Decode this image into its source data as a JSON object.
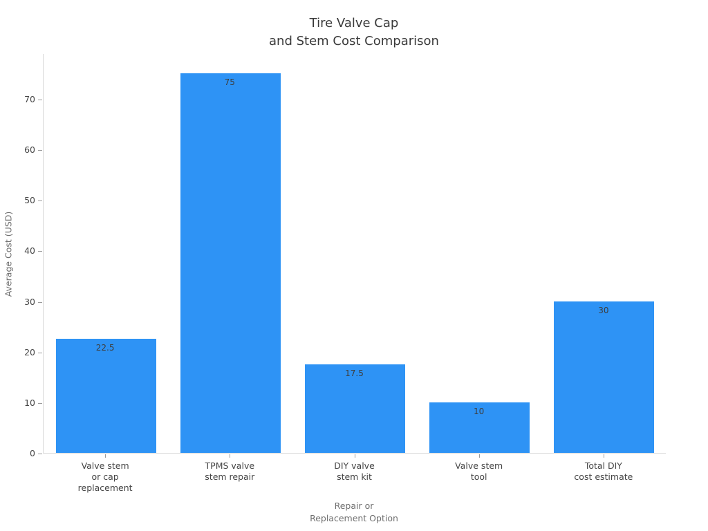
{
  "chart_data": {
    "type": "bar",
    "title": "Tire Valve Cap\nand Stem Cost Comparison",
    "categories": [
      "Valve stem\nor cap\nreplacement",
      "TPMS valve\nstem repair",
      "DIY valve\nstem kit",
      "Valve stem\ntool",
      "Total DIY\ncost estimate"
    ],
    "values": [
      22.5,
      75,
      17.5,
      10,
      30
    ],
    "value_labels": [
      "22.5",
      "75",
      "17.5",
      "10",
      "30"
    ],
    "xlabel": "Repair or\nReplacement Option",
    "ylabel": "Average Cost (USD)",
    "yticks": [
      0,
      10,
      20,
      30,
      40,
      50,
      60,
      70
    ],
    "ylim": [
      0,
      79
    ],
    "grid": false,
    "legend": "none",
    "colors": {
      "bar_fill": "#2E93F5",
      "title_text": "#3a3a3a",
      "tick_label_text": "#444444",
      "axis_title_text": "#6e6e6e",
      "value_label_text": "#3d3d3d",
      "axis_line": "#d9d9d9",
      "tick_mark": "#9a9a9a",
      "background": "#ffffff"
    }
  }
}
